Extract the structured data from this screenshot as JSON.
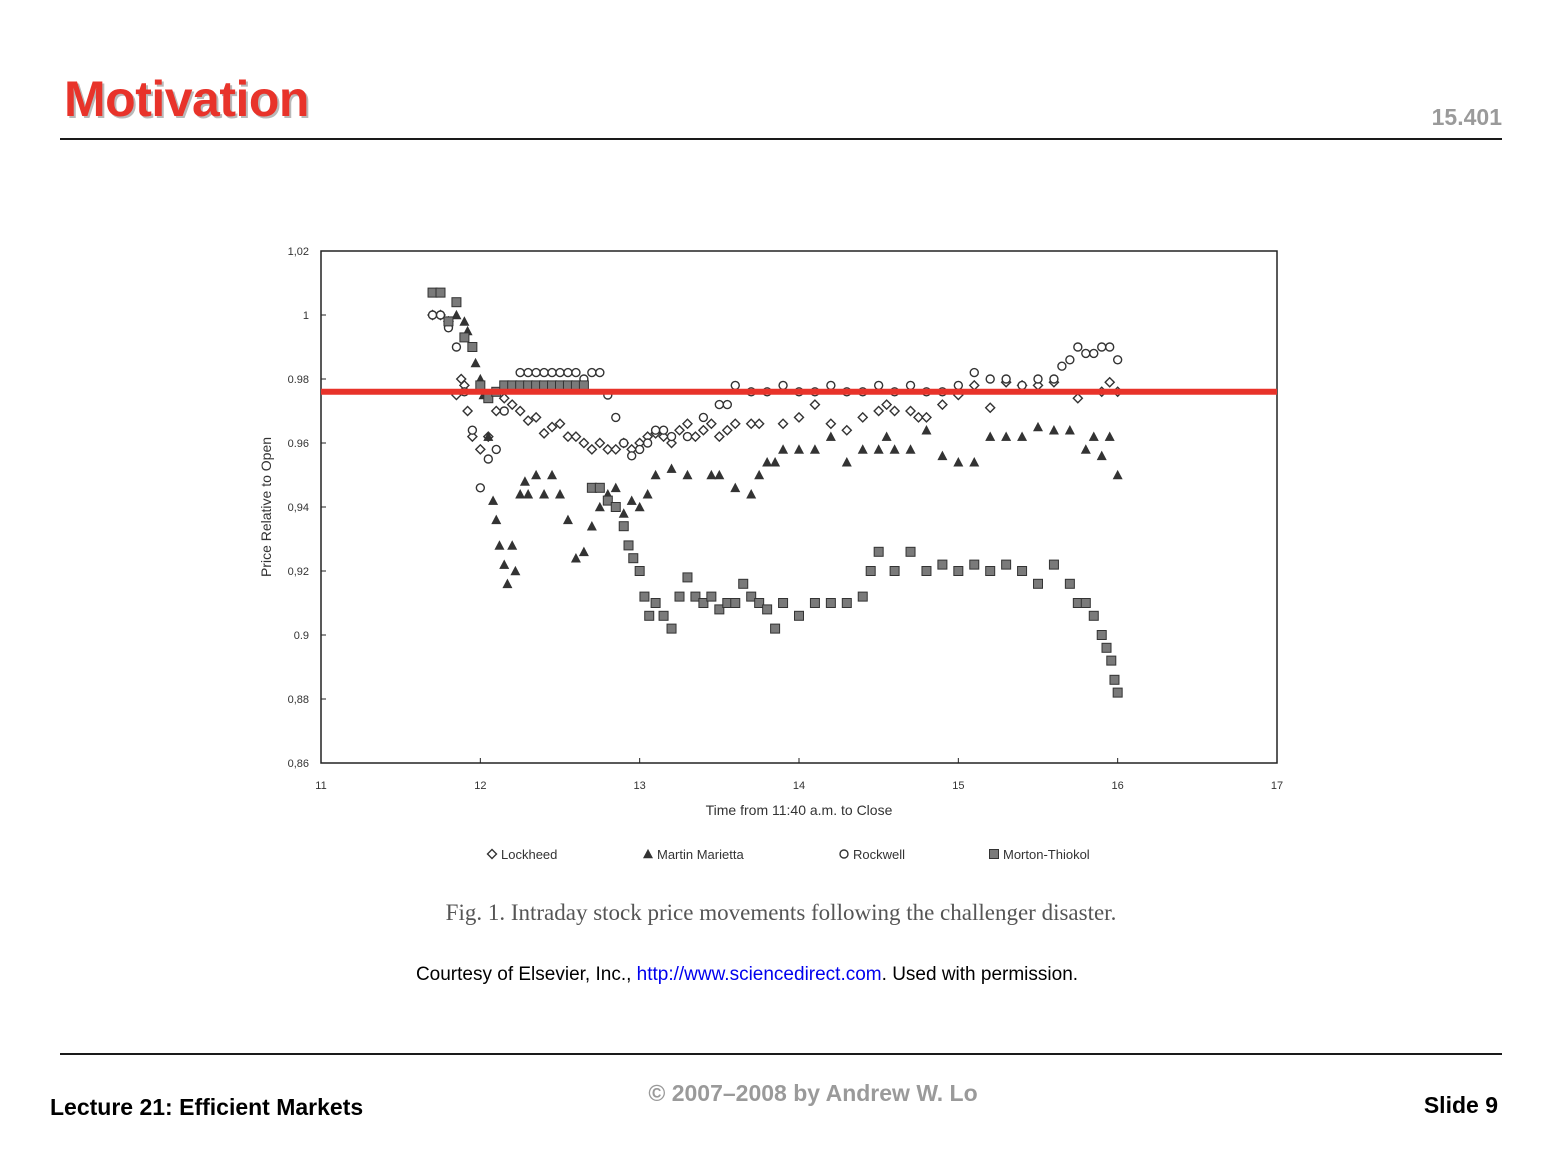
{
  "slide": {
    "title": "Motivation",
    "course": "15.401",
    "footer_left": "Lecture 21: Efficient Markets",
    "footer_center": "© 2007–2008 by Andrew W. Lo",
    "footer_right": "Slide 9"
  },
  "figure": {
    "caption": "Fig. 1. Intraday stock price movements following the challenger disaster.",
    "courtesy_prefix": "Courtesy of Elsevier, Inc., ",
    "courtesy_link": "http://www.sciencedirect.com",
    "courtesy_suffix": ". Used with permission."
  },
  "colors": {
    "title": "#e8332a",
    "highlight_line": "#e8332a",
    "link": "#0000ee",
    "marker_dark": "#333333",
    "marker_fill_square": "#7a7a7a"
  },
  "chart_data": {
    "type": "scatter",
    "title": "",
    "xlabel": "Time from 11:40 a.m. to Close",
    "ylabel": "Price Relative to Open",
    "xlim": [
      11,
      17
    ],
    "ylim": [
      0.86,
      1.02
    ],
    "xticks": [
      11,
      12,
      13,
      14,
      15,
      16,
      17
    ],
    "yticks": [
      0.86,
      0.88,
      0.9,
      0.92,
      0.94,
      0.96,
      0.98,
      1,
      1.02
    ],
    "ytick_labels": [
      "0,86",
      "0,88",
      "0.9",
      "0,92",
      "0,94",
      "0.96",
      "0.98",
      "1",
      "1,02"
    ],
    "grid": false,
    "legend_position": "bottom",
    "highlight_hline": 0.976,
    "series": [
      {
        "name": "Lockheed",
        "marker": "diamond-open",
        "points": [
          [
            11.7,
            1.0
          ],
          [
            11.75,
            1.0
          ],
          [
            11.8,
            0.998
          ],
          [
            11.85,
            0.975
          ],
          [
            11.88,
            0.98
          ],
          [
            11.9,
            0.978
          ],
          [
            11.92,
            0.97
          ],
          [
            11.95,
            0.962
          ],
          [
            12.0,
            0.958
          ],
          [
            12.05,
            0.962
          ],
          [
            12.1,
            0.97
          ],
          [
            12.15,
            0.974
          ],
          [
            12.2,
            0.972
          ],
          [
            12.25,
            0.97
          ],
          [
            12.3,
            0.967
          ],
          [
            12.35,
            0.968
          ],
          [
            12.4,
            0.963
          ],
          [
            12.45,
            0.965
          ],
          [
            12.5,
            0.966
          ],
          [
            12.55,
            0.962
          ],
          [
            12.6,
            0.962
          ],
          [
            12.65,
            0.96
          ],
          [
            12.7,
            0.958
          ],
          [
            12.75,
            0.96
          ],
          [
            12.8,
            0.958
          ],
          [
            12.85,
            0.958
          ],
          [
            12.9,
            0.96
          ],
          [
            12.95,
            0.958
          ],
          [
            13.0,
            0.96
          ],
          [
            13.05,
            0.962
          ],
          [
            13.1,
            0.963
          ],
          [
            13.15,
            0.962
          ],
          [
            13.2,
            0.96
          ],
          [
            13.25,
            0.964
          ],
          [
            13.3,
            0.966
          ],
          [
            13.35,
            0.962
          ],
          [
            13.4,
            0.964
          ],
          [
            13.45,
            0.966
          ],
          [
            13.5,
            0.962
          ],
          [
            13.55,
            0.964
          ],
          [
            13.6,
            0.966
          ],
          [
            13.7,
            0.966
          ],
          [
            13.75,
            0.966
          ],
          [
            13.9,
            0.966
          ],
          [
            14.0,
            0.968
          ],
          [
            14.1,
            0.972
          ],
          [
            14.2,
            0.966
          ],
          [
            14.3,
            0.964
          ],
          [
            14.4,
            0.968
          ],
          [
            14.5,
            0.97
          ],
          [
            14.55,
            0.972
          ],
          [
            14.6,
            0.97
          ],
          [
            14.7,
            0.97
          ],
          [
            14.75,
            0.968
          ],
          [
            14.8,
            0.968
          ],
          [
            14.9,
            0.972
          ],
          [
            15.0,
            0.975
          ],
          [
            15.1,
            0.978
          ],
          [
            15.2,
            0.971
          ],
          [
            15.3,
            0.979
          ],
          [
            15.4,
            0.978
          ],
          [
            15.5,
            0.978
          ],
          [
            15.6,
            0.979
          ],
          [
            15.75,
            0.974
          ],
          [
            15.9,
            0.976
          ],
          [
            15.95,
            0.979
          ],
          [
            16.0,
            0.976
          ]
        ]
      },
      {
        "name": "Martin Marietta",
        "marker": "triangle",
        "points": [
          [
            11.85,
            1.0
          ],
          [
            11.9,
            0.998
          ],
          [
            11.92,
            0.995
          ],
          [
            11.95,
            0.99
          ],
          [
            11.97,
            0.985
          ],
          [
            12.0,
            0.98
          ],
          [
            12.02,
            0.975
          ],
          [
            12.05,
            0.962
          ],
          [
            12.08,
            0.942
          ],
          [
            12.1,
            0.936
          ],
          [
            12.12,
            0.928
          ],
          [
            12.15,
            0.922
          ],
          [
            12.17,
            0.916
          ],
          [
            12.2,
            0.928
          ],
          [
            12.22,
            0.92
          ],
          [
            12.25,
            0.944
          ],
          [
            12.28,
            0.948
          ],
          [
            12.3,
            0.944
          ],
          [
            12.35,
            0.95
          ],
          [
            12.4,
            0.944
          ],
          [
            12.45,
            0.95
          ],
          [
            12.5,
            0.944
          ],
          [
            12.55,
            0.936
          ],
          [
            12.6,
            0.924
          ],
          [
            12.65,
            0.926
          ],
          [
            12.7,
            0.934
          ],
          [
            12.75,
            0.94
          ],
          [
            12.8,
            0.944
          ],
          [
            12.85,
            0.946
          ],
          [
            12.9,
            0.938
          ],
          [
            12.95,
            0.942
          ],
          [
            13.0,
            0.94
          ],
          [
            13.05,
            0.944
          ],
          [
            13.1,
            0.95
          ],
          [
            13.2,
            0.952
          ],
          [
            13.3,
            0.95
          ],
          [
            13.45,
            0.95
          ],
          [
            13.5,
            0.95
          ],
          [
            13.6,
            0.946
          ],
          [
            13.7,
            0.944
          ],
          [
            13.75,
            0.95
          ],
          [
            13.8,
            0.954
          ],
          [
            13.85,
            0.954
          ],
          [
            13.9,
            0.958
          ],
          [
            14.0,
            0.958
          ],
          [
            14.1,
            0.958
          ],
          [
            14.2,
            0.962
          ],
          [
            14.3,
            0.954
          ],
          [
            14.4,
            0.958
          ],
          [
            14.5,
            0.958
          ],
          [
            14.55,
            0.962
          ],
          [
            14.6,
            0.958
          ],
          [
            14.7,
            0.958
          ],
          [
            14.8,
            0.964
          ],
          [
            14.9,
            0.956
          ],
          [
            15.0,
            0.954
          ],
          [
            15.1,
            0.954
          ],
          [
            15.2,
            0.962
          ],
          [
            15.3,
            0.962
          ],
          [
            15.4,
            0.962
          ],
          [
            15.5,
            0.965
          ],
          [
            15.6,
            0.964
          ],
          [
            15.7,
            0.964
          ],
          [
            15.8,
            0.958
          ],
          [
            15.85,
            0.962
          ],
          [
            15.9,
            0.956
          ],
          [
            15.95,
            0.962
          ],
          [
            16.0,
            0.95
          ]
        ]
      },
      {
        "name": "Rockwell",
        "marker": "circle-open",
        "points": [
          [
            11.7,
            1.0
          ],
          [
            11.75,
            1.0
          ],
          [
            11.8,
            0.996
          ],
          [
            11.85,
            0.99
          ],
          [
            11.9,
            0.976
          ],
          [
            11.95,
            0.964
          ],
          [
            12.0,
            0.946
          ],
          [
            12.05,
            0.955
          ],
          [
            12.1,
            0.958
          ],
          [
            12.15,
            0.97
          ],
          [
            12.2,
            0.978
          ],
          [
            12.25,
            0.982
          ],
          [
            12.3,
            0.982
          ],
          [
            12.35,
            0.982
          ],
          [
            12.4,
            0.982
          ],
          [
            12.45,
            0.982
          ],
          [
            12.5,
            0.982
          ],
          [
            12.55,
            0.982
          ],
          [
            12.6,
            0.982
          ],
          [
            12.65,
            0.98
          ],
          [
            12.7,
            0.982
          ],
          [
            12.75,
            0.982
          ],
          [
            12.8,
            0.975
          ],
          [
            12.85,
            0.968
          ],
          [
            12.9,
            0.96
          ],
          [
            12.95,
            0.956
          ],
          [
            13.0,
            0.958
          ],
          [
            13.05,
            0.96
          ],
          [
            13.1,
            0.964
          ],
          [
            13.15,
            0.964
          ],
          [
            13.2,
            0.962
          ],
          [
            13.3,
            0.962
          ],
          [
            13.4,
            0.968
          ],
          [
            13.5,
            0.972
          ],
          [
            13.55,
            0.972
          ],
          [
            13.6,
            0.978
          ],
          [
            13.7,
            0.976
          ],
          [
            13.8,
            0.976
          ],
          [
            13.9,
            0.978
          ],
          [
            14.0,
            0.976
          ],
          [
            14.1,
            0.976
          ],
          [
            14.2,
            0.978
          ],
          [
            14.3,
            0.976
          ],
          [
            14.4,
            0.976
          ],
          [
            14.5,
            0.978
          ],
          [
            14.6,
            0.976
          ],
          [
            14.7,
            0.978
          ],
          [
            14.8,
            0.976
          ],
          [
            14.9,
            0.976
          ],
          [
            15.0,
            0.978
          ],
          [
            15.1,
            0.982
          ],
          [
            15.2,
            0.98
          ],
          [
            15.3,
            0.98
          ],
          [
            15.4,
            0.978
          ],
          [
            15.5,
            0.98
          ],
          [
            15.6,
            0.98
          ],
          [
            15.65,
            0.984
          ],
          [
            15.7,
            0.986
          ],
          [
            15.75,
            0.99
          ],
          [
            15.8,
            0.988
          ],
          [
            15.85,
            0.988
          ],
          [
            15.9,
            0.99
          ],
          [
            15.95,
            0.99
          ],
          [
            16.0,
            0.986
          ]
        ]
      },
      {
        "name": "Morton-Thiokol",
        "marker": "square",
        "points": [
          [
            11.7,
            1.007
          ],
          [
            11.75,
            1.007
          ],
          [
            11.8,
            0.998
          ],
          [
            11.85,
            1.004
          ],
          [
            11.9,
            0.993
          ],
          [
            11.95,
            0.99
          ],
          [
            12.0,
            0.978
          ],
          [
            12.05,
            0.974
          ],
          [
            12.1,
            0.976
          ],
          [
            12.15,
            0.978
          ],
          [
            12.2,
            0.978
          ],
          [
            12.25,
            0.978
          ],
          [
            12.3,
            0.978
          ],
          [
            12.35,
            0.978
          ],
          [
            12.4,
            0.978
          ],
          [
            12.45,
            0.978
          ],
          [
            12.5,
            0.978
          ],
          [
            12.55,
            0.978
          ],
          [
            12.6,
            0.978
          ],
          [
            12.65,
            0.978
          ],
          [
            12.7,
            0.946
          ],
          [
            12.75,
            0.946
          ],
          [
            12.8,
            0.942
          ],
          [
            12.85,
            0.94
          ],
          [
            12.9,
            0.934
          ],
          [
            12.93,
            0.928
          ],
          [
            12.96,
            0.924
          ],
          [
            13.0,
            0.92
          ],
          [
            13.03,
            0.912
          ],
          [
            13.06,
            0.906
          ],
          [
            13.1,
            0.91
          ],
          [
            13.15,
            0.906
          ],
          [
            13.2,
            0.902
          ],
          [
            13.25,
            0.912
          ],
          [
            13.3,
            0.918
          ],
          [
            13.35,
            0.912
          ],
          [
            13.4,
            0.91
          ],
          [
            13.45,
            0.912
          ],
          [
            13.5,
            0.908
          ],
          [
            13.55,
            0.91
          ],
          [
            13.6,
            0.91
          ],
          [
            13.65,
            0.916
          ],
          [
            13.7,
            0.912
          ],
          [
            13.75,
            0.91
          ],
          [
            13.8,
            0.908
          ],
          [
            13.85,
            0.902
          ],
          [
            13.9,
            0.91
          ],
          [
            14.0,
            0.906
          ],
          [
            14.1,
            0.91
          ],
          [
            14.2,
            0.91
          ],
          [
            14.3,
            0.91
          ],
          [
            14.4,
            0.912
          ],
          [
            14.45,
            0.92
          ],
          [
            14.5,
            0.926
          ],
          [
            14.6,
            0.92
          ],
          [
            14.7,
            0.926
          ],
          [
            14.8,
            0.92
          ],
          [
            14.9,
            0.922
          ],
          [
            15.0,
            0.92
          ],
          [
            15.1,
            0.922
          ],
          [
            15.2,
            0.92
          ],
          [
            15.3,
            0.922
          ],
          [
            15.4,
            0.92
          ],
          [
            15.5,
            0.916
          ],
          [
            15.6,
            0.922
          ],
          [
            15.7,
            0.916
          ],
          [
            15.75,
            0.91
          ],
          [
            15.8,
            0.91
          ],
          [
            15.85,
            0.906
          ],
          [
            15.9,
            0.9
          ],
          [
            15.93,
            0.896
          ],
          [
            15.96,
            0.892
          ],
          [
            15.98,
            0.886
          ],
          [
            16.0,
            0.882
          ]
        ]
      }
    ]
  }
}
